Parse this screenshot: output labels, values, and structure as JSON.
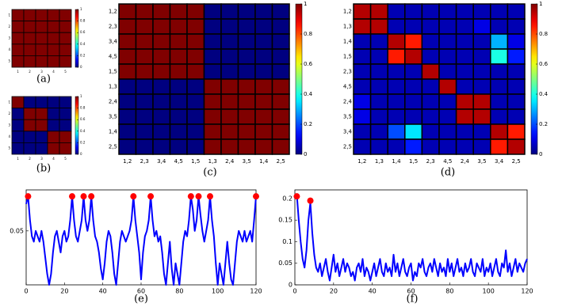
{
  "chart_data": [
    {
      "type": "heatmap",
      "caption": "(a)",
      "categories": [
        "1",
        "2",
        "3",
        "4",
        "5"
      ],
      "y_categories": [
        "1",
        "2",
        "3",
        "4",
        "5"
      ],
      "z": [
        [
          1,
          1,
          1,
          1,
          1
        ],
        [
          1,
          1,
          1,
          1,
          1
        ],
        [
          1,
          1,
          1,
          1,
          1
        ],
        [
          1,
          1,
          1,
          1,
          1
        ],
        [
          1,
          1,
          1,
          1,
          1
        ]
      ],
      "clim": [
        0,
        1
      ],
      "cticks": [
        0,
        0.2,
        0.4,
        0.6,
        0.8,
        1
      ]
    },
    {
      "type": "heatmap",
      "caption": "(b)",
      "categories": [
        "1",
        "2",
        "3",
        "4",
        "5"
      ],
      "y_categories": [
        "1",
        "2",
        "3",
        "4",
        "5"
      ],
      "z": [
        [
          1,
          0,
          0,
          0,
          0
        ],
        [
          0,
          1,
          1,
          0,
          0
        ],
        [
          0,
          1,
          1,
          0,
          0
        ],
        [
          0,
          0,
          0,
          1,
          1
        ],
        [
          0,
          0,
          0,
          1,
          1
        ]
      ],
      "clim": [
        0,
        1
      ],
      "cticks": [
        0,
        0.2,
        0.4,
        0.6,
        0.8,
        1
      ]
    },
    {
      "type": "heatmap",
      "caption": "(c)",
      "categories": [
        "1,2",
        "2,3",
        "3,4",
        "4,5",
        "1,5",
        "1,3",
        "2,4",
        "3,5",
        "1,4",
        "2,5"
      ],
      "y_categories": [
        "1,2",
        "2,3",
        "3,4",
        "4,5",
        "1,5",
        "1,3",
        "2,4",
        "3,5",
        "1,4",
        "2,5"
      ],
      "z": [
        [
          1,
          1,
          1,
          1,
          1,
          0,
          0,
          0,
          0,
          0
        ],
        [
          1,
          1,
          1,
          1,
          1,
          0,
          0,
          0,
          0,
          0
        ],
        [
          1,
          1,
          1,
          1,
          1,
          0,
          0,
          0,
          0,
          0
        ],
        [
          1,
          1,
          1,
          1,
          1,
          0,
          0,
          0,
          0,
          0
        ],
        [
          1,
          1,
          1,
          1,
          1,
          0,
          0,
          0,
          0,
          0
        ],
        [
          0,
          0,
          0,
          0,
          0,
          1,
          1,
          1,
          1,
          1
        ],
        [
          0,
          0,
          0,
          0,
          0,
          1,
          1,
          1,
          1,
          1
        ],
        [
          0,
          0,
          0,
          0,
          0,
          1,
          1,
          1,
          1,
          1
        ],
        [
          0,
          0,
          0,
          0,
          0,
          1,
          1,
          1,
          1,
          1
        ],
        [
          0,
          0,
          0,
          0,
          0,
          1,
          1,
          1,
          1,
          1
        ]
      ],
      "clim": [
        0,
        1
      ],
      "cticks": [
        0,
        0.2,
        0.4,
        0.6,
        0.8,
        1
      ]
    },
    {
      "type": "heatmap",
      "caption": "(d)",
      "categories": [
        "1,2",
        "1,3",
        "1,4",
        "1,5",
        "2,3",
        "4,5",
        "2,4",
        "3,5",
        "3,4",
        "2,5"
      ],
      "y_categories": [
        "1,2",
        "1,3",
        "1,4",
        "1,5",
        "2,3",
        "4,5",
        "2,4",
        "3,5",
        "3,4",
        "2,5"
      ],
      "z": [
        [
          0.95,
          0.95,
          0.05,
          0.05,
          0.05,
          0.05,
          0.05,
          0.05,
          0.05,
          0.05
        ],
        [
          0.95,
          0.95,
          0.05,
          0.05,
          0.05,
          0.05,
          0.05,
          0.1,
          0.05,
          0.05
        ],
        [
          0.05,
          0.05,
          0.95,
          0.85,
          0.05,
          0.05,
          0.05,
          0.05,
          0.3,
          0.1
        ],
        [
          0.05,
          0.05,
          0.85,
          0.95,
          0.05,
          0.05,
          0.05,
          0.05,
          0.4,
          0.15
        ],
        [
          0.05,
          0.05,
          0.05,
          0.05,
          0.95,
          0.05,
          0.05,
          0.05,
          0.05,
          0.05
        ],
        [
          0.05,
          0.05,
          0.05,
          0.05,
          0.05,
          0.95,
          0.05,
          0.05,
          0.05,
          0.05
        ],
        [
          0.1,
          0.05,
          0.05,
          0.05,
          0.05,
          0.05,
          0.95,
          0.95,
          0.05,
          0.05
        ],
        [
          0.1,
          0.05,
          0.05,
          0.05,
          0.05,
          0.05,
          0.95,
          0.95,
          0.05,
          0.05
        ],
        [
          0.05,
          0.05,
          0.2,
          0.35,
          0.05,
          0.05,
          0.05,
          0.05,
          0.95,
          0.85
        ],
        [
          0.05,
          0.05,
          0.05,
          0.15,
          0.05,
          0.05,
          0.05,
          0.05,
          0.85,
          0.95
        ]
      ],
      "clim": [
        0,
        1
      ],
      "cticks": [
        0,
        0.2,
        0.4,
        0.6,
        0.8,
        1
      ]
    },
    {
      "type": "line",
      "caption": "(e)",
      "color": "#0000ff",
      "x": [
        0,
        1,
        2,
        3,
        4,
        5,
        6,
        7,
        8,
        9,
        10,
        11,
        12,
        13,
        14,
        15,
        16,
        17,
        18,
        19,
        20,
        21,
        22,
        23,
        24,
        25,
        26,
        27,
        28,
        29,
        30,
        31,
        32,
        33,
        34,
        35,
        36,
        37,
        38,
        39,
        40,
        41,
        42,
        43,
        44,
        45,
        46,
        47,
        48,
        49,
        50,
        51,
        52,
        53,
        54,
        55,
        56,
        57,
        58,
        59,
        60,
        61,
        62,
        63,
        64,
        65,
        66,
        67,
        68,
        69,
        70,
        71,
        72,
        73,
        74,
        75,
        76,
        77,
        78,
        79,
        80,
        81,
        82,
        83,
        84,
        85,
        86,
        87,
        88,
        89,
        90,
        91,
        92,
        93,
        94,
        95,
        96,
        97,
        98,
        99,
        100,
        101,
        102,
        103,
        104,
        105,
        106,
        107,
        108,
        109,
        110,
        111,
        112,
        113,
        114,
        115,
        116,
        117,
        118,
        119,
        120
      ],
      "values": [
        0.075,
        0.082,
        0.06,
        0.045,
        0.04,
        0.05,
        0.045,
        0.04,
        0.05,
        0.04,
        0.025,
        0.01,
        0.0,
        0.01,
        0.03,
        0.045,
        0.05,
        0.04,
        0.03,
        0.045,
        0.05,
        0.04,
        0.045,
        0.06,
        0.082,
        0.06,
        0.045,
        0.04,
        0.05,
        0.06,
        0.082,
        0.06,
        0.05,
        0.06,
        0.082,
        0.06,
        0.045,
        0.04,
        0.03,
        0.015,
        0.005,
        0.02,
        0.04,
        0.05,
        0.045,
        0.03,
        0.01,
        0.0,
        0.02,
        0.04,
        0.05,
        0.045,
        0.04,
        0.045,
        0.05,
        0.06,
        0.082,
        0.06,
        0.045,
        0.03,
        0.005,
        0.03,
        0.045,
        0.05,
        0.06,
        0.082,
        0.06,
        0.045,
        0.05,
        0.04,
        0.045,
        0.03,
        0.01,
        0.0,
        0.02,
        0.04,
        0.015,
        0.0,
        0.02,
        0.01,
        0.0,
        0.02,
        0.04,
        0.05,
        0.045,
        0.06,
        0.082,
        0.07,
        0.05,
        0.06,
        0.082,
        0.065,
        0.05,
        0.04,
        0.05,
        0.06,
        0.082,
        0.06,
        0.045,
        0.02,
        0.0,
        0.02,
        0.01,
        0.0,
        0.02,
        0.04,
        0.02,
        0.005,
        0.0,
        0.02,
        0.04,
        0.05,
        0.045,
        0.04,
        0.05,
        0.04,
        0.045,
        0.05,
        0.04,
        0.06,
        0.082
      ],
      "markers": {
        "x": [
          1,
          24,
          30,
          34,
          56,
          65,
          86,
          90,
          96,
          120
        ],
        "values": [
          0.082,
          0.082,
          0.082,
          0.082,
          0.082,
          0.082,
          0.082,
          0.082,
          0.082,
          0.082
        ],
        "color": "#ff0000"
      },
      "xlim": [
        0,
        120
      ],
      "xticks": [
        0,
        20,
        40,
        60,
        80,
        100,
        120
      ],
      "ylim": [
        0,
        0.088
      ],
      "yticks": [
        0.05
      ]
    },
    {
      "type": "line",
      "caption": "(f)",
      "color": "#0000ff",
      "x": [
        0,
        1,
        2,
        3,
        4,
        5,
        6,
        7,
        8,
        9,
        10,
        11,
        12,
        13,
        14,
        15,
        16,
        17,
        18,
        19,
        20,
        21,
        22,
        23,
        24,
        25,
        26,
        27,
        28,
        29,
        30,
        31,
        32,
        33,
        34,
        35,
        36,
        37,
        38,
        39,
        40,
        41,
        42,
        43,
        44,
        45,
        46,
        47,
        48,
        49,
        50,
        51,
        52,
        53,
        54,
        55,
        56,
        57,
        58,
        59,
        60,
        61,
        62,
        63,
        64,
        65,
        66,
        67,
        68,
        69,
        70,
        71,
        72,
        73,
        74,
        75,
        76,
        77,
        78,
        79,
        80,
        81,
        82,
        83,
        84,
        85,
        86,
        87,
        88,
        89,
        90,
        91,
        92,
        93,
        94,
        95,
        96,
        97,
        98,
        99,
        100,
        101,
        102,
        103,
        104,
        105,
        106,
        107,
        108,
        109,
        110,
        111,
        112,
        113,
        114,
        115,
        116,
        117,
        118,
        119,
        120
      ],
      "values": [
        0.2,
        0.21,
        0.15,
        0.1,
        0.06,
        0.04,
        0.08,
        0.15,
        0.19,
        0.12,
        0.07,
        0.04,
        0.03,
        0.05,
        0.02,
        0.04,
        0.06,
        0.03,
        0.01,
        0.04,
        0.07,
        0.03,
        0.05,
        0.02,
        0.04,
        0.06,
        0.03,
        0.05,
        0.04,
        0.02,
        0.03,
        0.01,
        0.04,
        0.05,
        0.03,
        0.06,
        0.02,
        0.04,
        0.03,
        0.01,
        0.03,
        0.05,
        0.02,
        0.04,
        0.06,
        0.03,
        0.02,
        0.05,
        0.03,
        0.04,
        0.02,
        0.07,
        0.03,
        0.05,
        0.02,
        0.04,
        0.06,
        0.03,
        0.02,
        0.04,
        0.05,
        0.01,
        0.03,
        0.02,
        0.05,
        0.04,
        0.06,
        0.03,
        0.02,
        0.04,
        0.05,
        0.03,
        0.06,
        0.04,
        0.02,
        0.05,
        0.03,
        0.04,
        0.02,
        0.06,
        0.03,
        0.05,
        0.02,
        0.04,
        0.06,
        0.03,
        0.04,
        0.02,
        0.05,
        0.03,
        0.04,
        0.06,
        0.03,
        0.02,
        0.05,
        0.04,
        0.03,
        0.06,
        0.02,
        0.04,
        0.03,
        0.05,
        0.02,
        0.04,
        0.06,
        0.03,
        0.02,
        0.05,
        0.04,
        0.08,
        0.03,
        0.05,
        0.02,
        0.04,
        0.06,
        0.03,
        0.05,
        0.04,
        0.03,
        0.05,
        0.06
      ],
      "markers": {
        "x": [
          1,
          8
        ],
        "values": [
          0.205,
          0.195
        ],
        "color": "#ff0000"
      },
      "xlim": [
        0,
        120
      ],
      "xticks": [
        0,
        20,
        40,
        60,
        80,
        100,
        120
      ],
      "ylim": [
        0,
        0.22
      ],
      "yticks": [
        0,
        0.05,
        0.1,
        0.15,
        0.2
      ]
    }
  ]
}
